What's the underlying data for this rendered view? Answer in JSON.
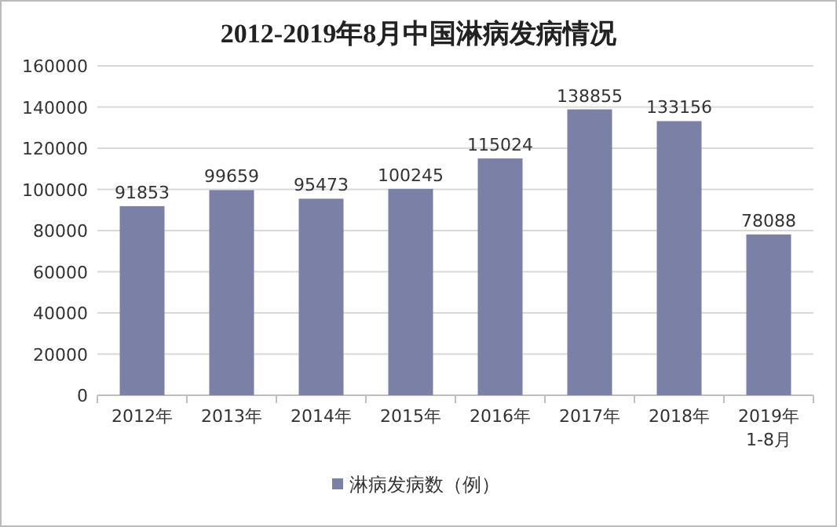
{
  "chart_data": {
    "type": "bar",
    "title": "2012-2019年8月中国淋病发病情况",
    "categories": [
      "2012年",
      "2013年",
      "2014年",
      "2015年",
      "2016年",
      "2017年",
      "2018年",
      "2019年\n1-8月"
    ],
    "series": [
      {
        "name": "淋病发病数（例）",
        "color": "#7a80a6",
        "values": [
          91853,
          99659,
          95473,
          100245,
          115024,
          138855,
          133156,
          78088
        ]
      }
    ],
    "ylim": [
      0,
      160000
    ],
    "yticks": [
      0,
      20000,
      40000,
      60000,
      80000,
      100000,
      120000,
      140000,
      160000
    ],
    "grid": "y",
    "legend": "bottom",
    "data_labels": true
  }
}
